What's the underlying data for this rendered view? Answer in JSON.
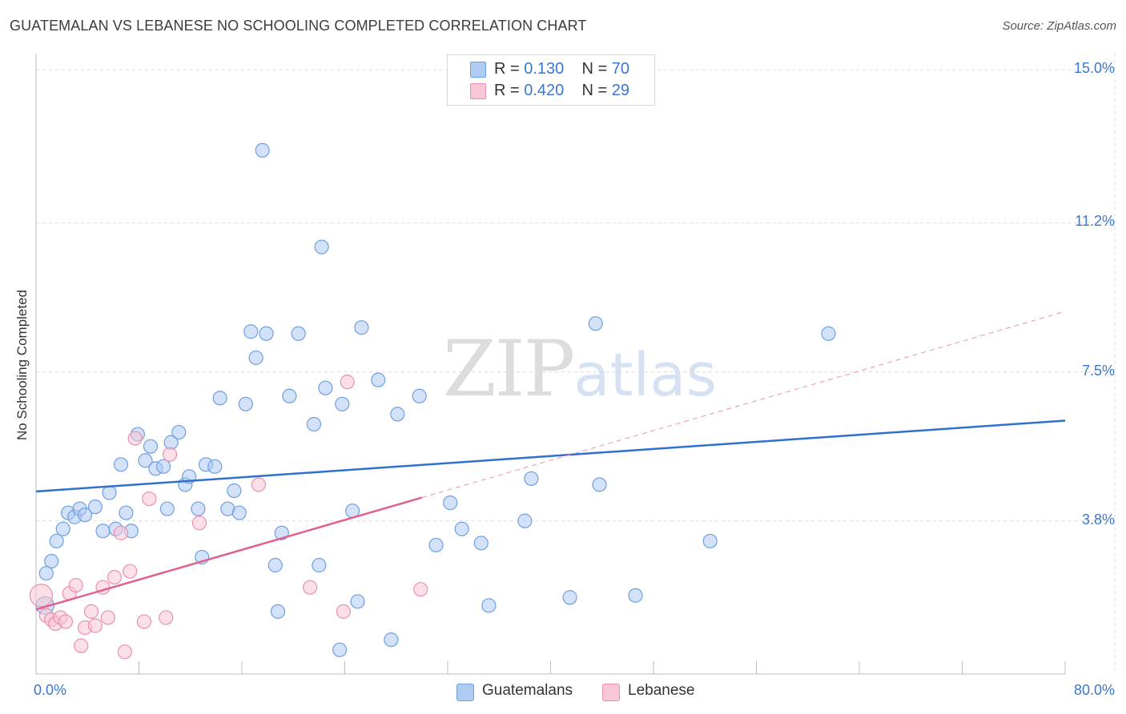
{
  "header": {
    "title": "GUATEMALAN VS LEBANESE NO SCHOOLING COMPLETED CORRELATION CHART",
    "source": "Source: ZipAtlas.com"
  },
  "watermark": {
    "zip": "ZIP",
    "atlas": "atlas"
  },
  "legend": {
    "rows": [
      {
        "r_label": "R = ",
        "r_value": "0.130",
        "n_label": "N = ",
        "n_value": "70",
        "color": "#aecbf2",
        "border": "#6e9fe0"
      },
      {
        "r_label": "R = ",
        "r_value": "0.420",
        "n_label": "N = ",
        "n_value": "29",
        "color": "#f9c7d6",
        "border": "#ec8fae"
      }
    ]
  },
  "bottom_legend": {
    "items": [
      {
        "label": "Guatemalans",
        "color": "#aecbf2",
        "border": "#6e9fe0"
      },
      {
        "label": "Lebanese",
        "color": "#f9c7d6",
        "border": "#ec8fae"
      }
    ]
  },
  "chart_data": {
    "type": "scatter",
    "title": "GUATEMALAN VS LEBANESE NO SCHOOLING COMPLETED CORRELATION CHART",
    "xlabel": "",
    "ylabel": "No Schooling Completed",
    "xlim": [
      0,
      80
    ],
    "ylim": [
      0,
      15.4
    ],
    "x_tick_labels": [
      "0.0%",
      "80.0%"
    ],
    "y_ticks": [
      3.8,
      7.5,
      11.2,
      15.0
    ],
    "y_tick_labels": [
      "3.8%",
      "7.5%",
      "11.2%",
      "15.0%"
    ],
    "series": [
      {
        "name": "Guatemalans",
        "color": "#6e9fe0",
        "fill": "#aecbf2",
        "trend": {
          "x": [
            0,
            80
          ],
          "y": [
            4.53,
            6.29
          ],
          "color": "#2f6fcf"
        },
        "points": [
          [
            0.7,
            1.7
          ],
          [
            0.8,
            2.5
          ],
          [
            1.2,
            2.8
          ],
          [
            1.6,
            3.3
          ],
          [
            2.1,
            3.6
          ],
          [
            2.5,
            4.0
          ],
          [
            3.0,
            3.9
          ],
          [
            3.4,
            4.1
          ],
          [
            3.8,
            3.95
          ],
          [
            4.6,
            4.15
          ],
          [
            5.2,
            3.55
          ],
          [
            5.7,
            4.5
          ],
          [
            6.2,
            3.6
          ],
          [
            6.6,
            5.2
          ],
          [
            7.0,
            4.0
          ],
          [
            7.4,
            3.55
          ],
          [
            7.9,
            5.95
          ],
          [
            8.5,
            5.3
          ],
          [
            8.9,
            5.65
          ],
          [
            9.3,
            5.1
          ],
          [
            9.9,
            5.15
          ],
          [
            10.2,
            4.1
          ],
          [
            10.5,
            5.75
          ],
          [
            11.1,
            6.0
          ],
          [
            11.6,
            4.7
          ],
          [
            11.9,
            4.9
          ],
          [
            12.6,
            4.1
          ],
          [
            12.9,
            2.9
          ],
          [
            13.2,
            5.2
          ],
          [
            13.9,
            5.15
          ],
          [
            14.3,
            6.85
          ],
          [
            14.9,
            4.1
          ],
          [
            15.4,
            4.55
          ],
          [
            15.8,
            4.0
          ],
          [
            16.3,
            6.7
          ],
          [
            16.7,
            8.5
          ],
          [
            17.1,
            7.85
          ],
          [
            17.6,
            13.0
          ],
          [
            17.9,
            8.45
          ],
          [
            18.6,
            2.7
          ],
          [
            18.8,
            1.55
          ],
          [
            19.1,
            3.5
          ],
          [
            19.7,
            6.9
          ],
          [
            20.4,
            8.45
          ],
          [
            21.6,
            6.2
          ],
          [
            22.0,
            2.7
          ],
          [
            22.2,
            10.6
          ],
          [
            22.5,
            7.1
          ],
          [
            23.6,
            0.6
          ],
          [
            23.8,
            6.7
          ],
          [
            24.6,
            4.05
          ],
          [
            25.0,
            1.8
          ],
          [
            25.3,
            8.6
          ],
          [
            26.6,
            7.3
          ],
          [
            27.6,
            0.85
          ],
          [
            28.1,
            6.45
          ],
          [
            29.8,
            6.9
          ],
          [
            31.1,
            3.2
          ],
          [
            32.2,
            4.25
          ],
          [
            33.1,
            3.6
          ],
          [
            34.6,
            3.25
          ],
          [
            35.2,
            1.7
          ],
          [
            38.0,
            3.8
          ],
          [
            38.5,
            4.85
          ],
          [
            41.5,
            1.9
          ],
          [
            43.5,
            8.7
          ],
          [
            43.8,
            4.7
          ],
          [
            46.6,
            1.95
          ],
          [
            52.4,
            3.3
          ],
          [
            61.6,
            8.45
          ]
        ]
      },
      {
        "name": "Lebanese",
        "color": "#ec8fae",
        "fill": "#f9c7d6",
        "trend": {
          "x": [
            0,
            30
          ],
          "y": [
            1.6,
            4.38
          ],
          "color": "#e0608e"
        },
        "trend_extension": {
          "x": [
            30,
            80
          ],
          "y": [
            4.38,
            9.0
          ]
        },
        "points": [
          [
            0.4,
            1.95
          ],
          [
            0.8,
            1.45
          ],
          [
            1.2,
            1.35
          ],
          [
            1.5,
            1.25
          ],
          [
            1.9,
            1.4
          ],
          [
            2.3,
            1.3
          ],
          [
            2.6,
            2.0
          ],
          [
            3.1,
            2.2
          ],
          [
            3.5,
            0.7
          ],
          [
            3.8,
            1.15
          ],
          [
            4.3,
            1.55
          ],
          [
            4.6,
            1.2
          ],
          [
            5.2,
            2.15
          ],
          [
            5.6,
            1.4
          ],
          [
            6.1,
            2.4
          ],
          [
            6.6,
            3.5
          ],
          [
            6.9,
            0.55
          ],
          [
            7.3,
            2.55
          ],
          [
            7.7,
            5.85
          ],
          [
            8.4,
            1.3
          ],
          [
            8.8,
            4.35
          ],
          [
            10.1,
            1.4
          ],
          [
            10.4,
            5.45
          ],
          [
            12.7,
            3.75
          ],
          [
            17.3,
            4.7
          ],
          [
            21.3,
            2.15
          ],
          [
            23.9,
            1.55
          ],
          [
            24.2,
            7.25
          ],
          [
            29.9,
            2.1
          ]
        ]
      }
    ]
  }
}
